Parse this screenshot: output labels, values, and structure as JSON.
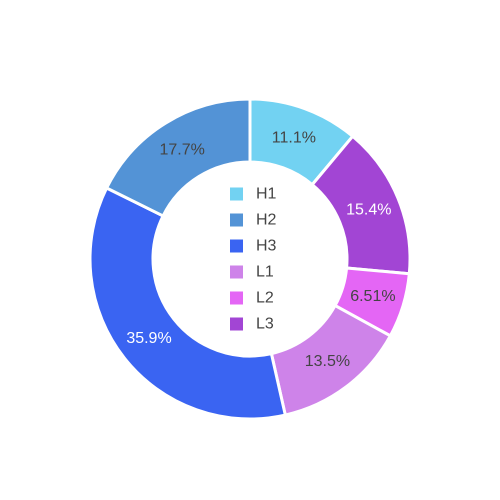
{
  "chart_data": {
    "type": "pie",
    "donut": true,
    "legend_position": "center",
    "slices": [
      {
        "name": "H1",
        "value": 11.1,
        "label": "11.1%",
        "color": "#72d2f2",
        "label_color": "#444444"
      },
      {
        "name": "L3",
        "value": 15.4,
        "label": "15.4%",
        "color": "#a245d4",
        "label_color": "#ffffff"
      },
      {
        "name": "L2",
        "value": 6.51,
        "label": "6.51%",
        "color": "#e466f5",
        "label_color": "#444444"
      },
      {
        "name": "L1",
        "value": 13.5,
        "label": "13.5%",
        "color": "#ce83e9",
        "label_color": "#444444"
      },
      {
        "name": "H3",
        "value": 35.9,
        "label": "35.9%",
        "color": "#3a64f2",
        "label_color": "#ffffff"
      },
      {
        "name": "H2",
        "value": 17.7,
        "label": "17.7%",
        "color": "#5393d6",
        "label_color": "#444444"
      }
    ],
    "legend": [
      {
        "name": "H1",
        "color": "#72d2f2"
      },
      {
        "name": "H2",
        "color": "#5393d6"
      },
      {
        "name": "H3",
        "color": "#3a64f2"
      },
      {
        "name": "L1",
        "color": "#ce83e9"
      },
      {
        "name": "L2",
        "color": "#e466f5"
      },
      {
        "name": "L3",
        "color": "#a245d4"
      }
    ]
  }
}
